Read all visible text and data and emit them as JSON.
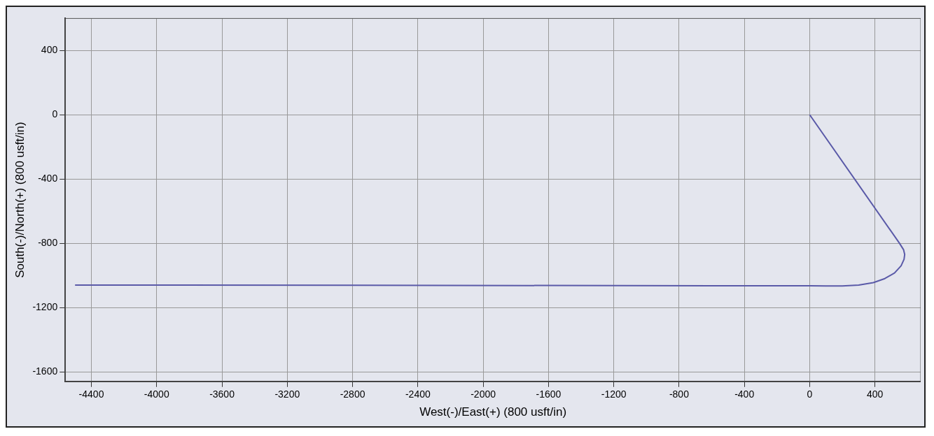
{
  "chart_data": {
    "type": "line",
    "xlabel": "West(-)/East(+) (800 usft/in)",
    "ylabel": "South(-)/North(+) (800 usft/in)",
    "xlim": [
      -4560,
      680
    ],
    "ylim": [
      -1660,
      600
    ],
    "xticks": [
      -4400,
      -4000,
      -3600,
      -3200,
      -2800,
      -2400,
      -2000,
      -1600,
      -1200,
      -800,
      -400,
      0,
      400
    ],
    "yticks": [
      -1600,
      -1200,
      -800,
      -400,
      0,
      400
    ],
    "grid": true,
    "legend": false,
    "series": [
      {
        "color": "#5a5aa8",
        "x": [
          0,
          550,
          575,
          582,
          578,
          560,
          520,
          460,
          390,
          300,
          200,
          100,
          0,
          -4500
        ],
        "values": [
          0,
          -800,
          -840,
          -870,
          -900,
          -940,
          -985,
          -1020,
          -1045,
          -1060,
          -1066,
          -1066,
          -1065,
          -1060
        ]
      }
    ]
  }
}
